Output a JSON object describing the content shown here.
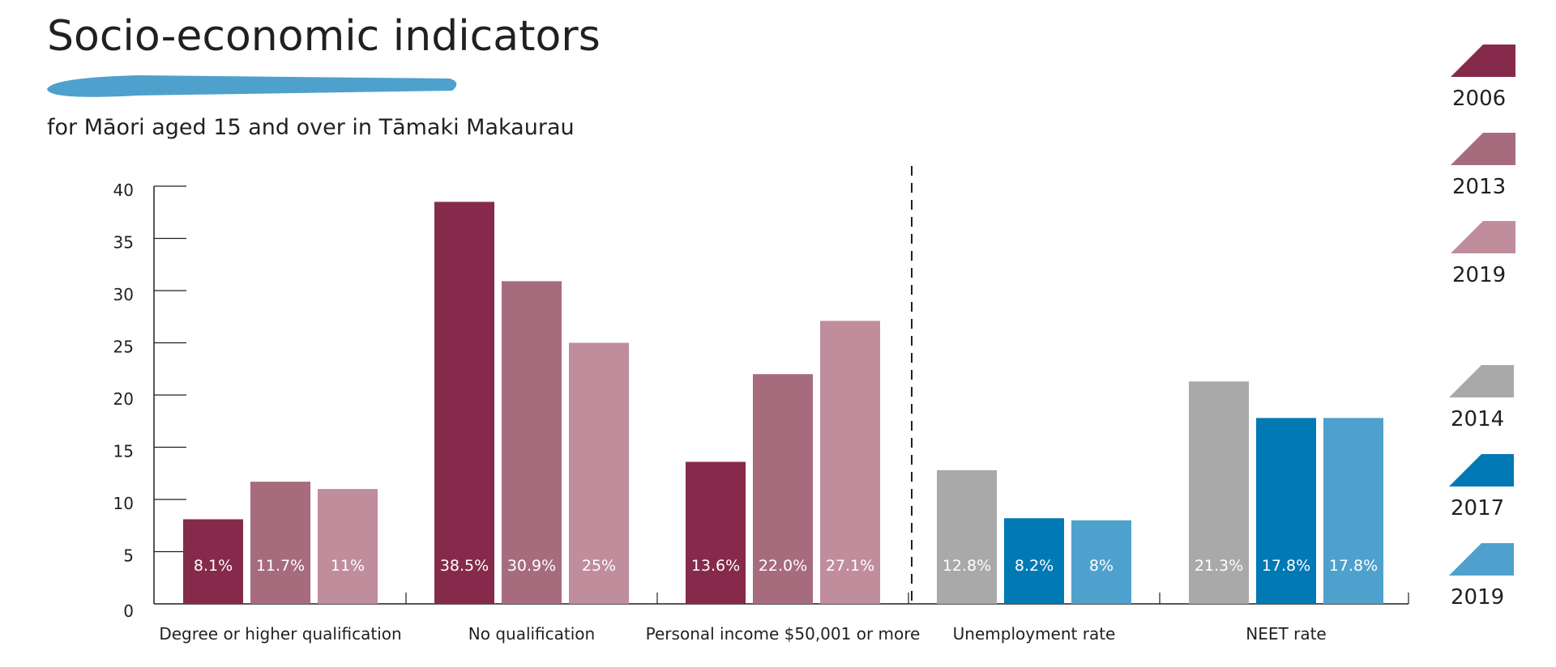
{
  "header": {
    "title": "Socio-economic indicators",
    "subtitle": "for Māori aged 15 and over in Tāmaki Makaurau",
    "underline_color": "#4ea1cc"
  },
  "chart_data": {
    "type": "bar",
    "title": "Socio-economic indicators",
    "subtitle": "for Māori aged 15 and over in Tāmaki Makaurau",
    "xlabel": "",
    "ylabel": "",
    "ylim": [
      0,
      40
    ],
    "yticks": [
      0,
      5,
      10,
      15,
      20,
      25,
      30,
      35,
      40
    ],
    "grid": false,
    "legend_position": "right",
    "groups": [
      {
        "category": "Degree or higher qualification",
        "bars": [
          {
            "year": "2006",
            "value": 8.1,
            "label": "8.1%",
            "color": "#862a4b"
          },
          {
            "year": "2013",
            "value": 11.7,
            "label": "11.7%",
            "color": "#a76b7e"
          },
          {
            "year": "2019",
            "value": 11.0,
            "label": "11%",
            "color": "#c08d9d"
          }
        ]
      },
      {
        "category": "No qualification",
        "bars": [
          {
            "year": "2006",
            "value": 38.5,
            "label": "38.5%",
            "color": "#862a4b"
          },
          {
            "year": "2013",
            "value": 30.9,
            "label": "30.9%",
            "color": "#a76b7e"
          },
          {
            "year": "2019",
            "value": 25.0,
            "label": "25%",
            "color": "#c08d9d"
          }
        ]
      },
      {
        "category": "Personal income $50,001 or more",
        "bars": [
          {
            "year": "2006",
            "value": 13.6,
            "label": "13.6%",
            "color": "#862a4b"
          },
          {
            "year": "2013",
            "value": 22.0,
            "label": "22.0%",
            "color": "#a76b7e"
          },
          {
            "year": "2019",
            "value": 27.1,
            "label": "27.1%",
            "color": "#c08d9d"
          }
        ]
      },
      {
        "category": "Unemployment rate",
        "bars": [
          {
            "year": "2014",
            "value": 12.8,
            "label": "12.8%",
            "color": "#a9a9a9"
          },
          {
            "year": "2017",
            "value": 8.2,
            "label": "8.2%",
            "color": "#0079b5"
          },
          {
            "year": "2019",
            "value": 8.0,
            "label": "8%",
            "color": "#4ea1cc"
          }
        ]
      },
      {
        "category": "NEET rate",
        "bars": [
          {
            "year": "2014",
            "value": 21.3,
            "label": "21.3%",
            "color": "#a9a9a9"
          },
          {
            "year": "2017",
            "value": 17.8,
            "label": "17.8%",
            "color": "#0079b5"
          },
          {
            "year": "2019",
            "value": 17.8,
            "label": "17.8%",
            "color": "#4ea1cc"
          }
        ]
      }
    ],
    "legend": [
      {
        "label": "2006",
        "color": "#862a4b"
      },
      {
        "label": "2013",
        "color": "#a76b7e"
      },
      {
        "label": "2019",
        "color": "#c08d9d"
      },
      {
        "label": "2014",
        "color": "#a9a9a9"
      },
      {
        "label": "2017",
        "color": "#0079b5"
      },
      {
        "label": "2019",
        "color": "#4ea1cc"
      }
    ]
  }
}
